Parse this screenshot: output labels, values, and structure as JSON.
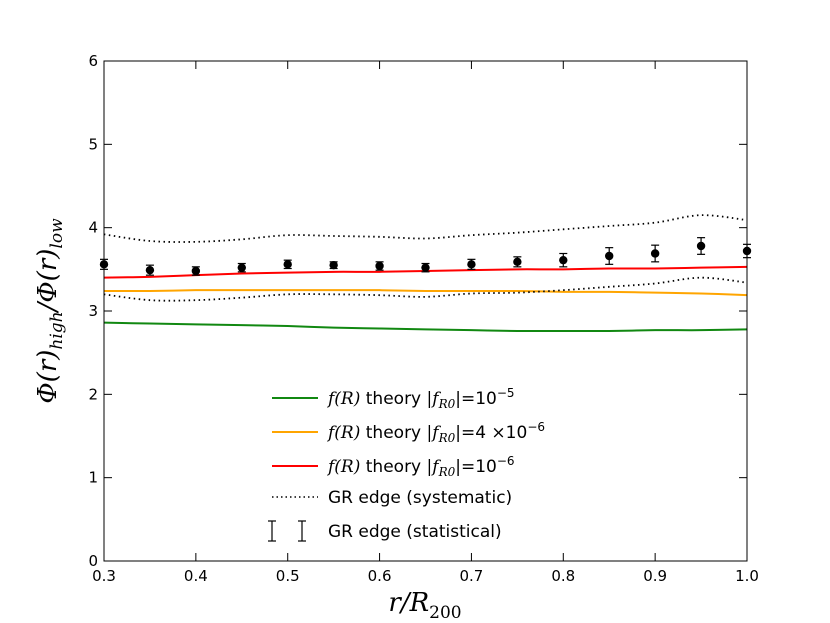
{
  "chart_data": {
    "type": "line",
    "title": "",
    "xlabel": "r/R",
    "xlabel_sub": "200",
    "ylabel_parts": {
      "phi1": "Φ(r)",
      "sub1": "high",
      "slash": "/Φ(r)",
      "sub2": "low"
    },
    "xlim": [
      0.3,
      1.0
    ],
    "ylim": [
      0,
      6
    ],
    "xticks": [
      "0.3",
      "0.4",
      "0.5",
      "0.6",
      "0.7",
      "0.8",
      "0.9",
      "1.0"
    ],
    "yticks": [
      "0",
      "1",
      "2",
      "3",
      "4",
      "5",
      "6"
    ],
    "series": [
      {
        "name": "f(R) theory |fR0|=10^-5",
        "color": "#118811",
        "style": "solid",
        "x": [
          0.3,
          0.35,
          0.4,
          0.45,
          0.5,
          0.55,
          0.6,
          0.65,
          0.7,
          0.75,
          0.8,
          0.85,
          0.9,
          0.95,
          1.0
        ],
        "y": [
          2.86,
          2.85,
          2.84,
          2.83,
          2.82,
          2.8,
          2.79,
          2.78,
          2.77,
          2.76,
          2.76,
          2.76,
          2.77,
          2.77,
          2.78
        ]
      },
      {
        "name": "f(R) theory |fR0|=4×10^-6",
        "color": "#ffa500",
        "style": "solid",
        "x": [
          0.3,
          0.35,
          0.4,
          0.45,
          0.5,
          0.55,
          0.6,
          0.65,
          0.7,
          0.75,
          0.8,
          0.85,
          0.9,
          0.95,
          1.0
        ],
        "y": [
          3.24,
          3.24,
          3.25,
          3.25,
          3.25,
          3.25,
          3.25,
          3.24,
          3.24,
          3.24,
          3.23,
          3.23,
          3.22,
          3.21,
          3.19
        ]
      },
      {
        "name": "f(R) theory |fR0|=10^-6",
        "color": "#ff0000",
        "style": "solid",
        "x": [
          0.3,
          0.35,
          0.4,
          0.45,
          0.5,
          0.55,
          0.6,
          0.65,
          0.7,
          0.75,
          0.8,
          0.85,
          0.9,
          0.95,
          1.0
        ],
        "y": [
          3.4,
          3.41,
          3.43,
          3.45,
          3.46,
          3.47,
          3.47,
          3.48,
          3.49,
          3.5,
          3.5,
          3.51,
          3.51,
          3.52,
          3.53
        ]
      },
      {
        "name": "GR edge (systematic) upper",
        "color": "#000000",
        "style": "dotted",
        "x": [
          0.3,
          0.35,
          0.4,
          0.45,
          0.5,
          0.55,
          0.6,
          0.65,
          0.7,
          0.75,
          0.8,
          0.85,
          0.9,
          0.95,
          1.0
        ],
        "y": [
          3.92,
          3.84,
          3.83,
          3.86,
          3.91,
          3.9,
          3.89,
          3.87,
          3.91,
          3.94,
          3.98,
          4.02,
          4.06,
          4.15,
          4.09
        ]
      },
      {
        "name": "GR edge (systematic) lower",
        "color": "#000000",
        "style": "dotted",
        "x": [
          0.3,
          0.35,
          0.4,
          0.45,
          0.5,
          0.55,
          0.6,
          0.65,
          0.7,
          0.75,
          0.8,
          0.85,
          0.9,
          0.95,
          1.0
        ],
        "y": [
          3.2,
          3.13,
          3.13,
          3.16,
          3.2,
          3.2,
          3.19,
          3.17,
          3.21,
          3.22,
          3.25,
          3.29,
          3.33,
          3.4,
          3.34
        ]
      }
    ],
    "points": {
      "name": "GR edge (statistical)",
      "color": "#000000",
      "x": [
        0.3,
        0.35,
        0.4,
        0.45,
        0.5,
        0.55,
        0.6,
        0.65,
        0.7,
        0.75,
        0.8,
        0.85,
        0.9,
        0.95,
        1.0
      ],
      "y": [
        3.56,
        3.49,
        3.48,
        3.52,
        3.56,
        3.55,
        3.54,
        3.52,
        3.56,
        3.59,
        3.61,
        3.66,
        3.69,
        3.78,
        3.72
      ],
      "err": [
        0.06,
        0.06,
        0.05,
        0.05,
        0.05,
        0.04,
        0.05,
        0.05,
        0.06,
        0.06,
        0.08,
        0.1,
        0.1,
        0.1,
        0.08
      ]
    },
    "legend": {
      "placement": "lower-center",
      "entries": [
        {
          "math": "f(R)",
          "text": " theory ",
          "math2": "|f",
          "sub": "R0",
          "tail": "|=10",
          "sup": "−5"
        },
        {
          "math": "f(R)",
          "text": " theory ",
          "math2": "|f",
          "sub": "R0",
          "tail": "|=4 ×10",
          "sup": "−6"
        },
        {
          "math": "f(R)",
          "text": " theory ",
          "math2": "|f",
          "sub": "R0",
          "tail": "|=10",
          "sup": "−6"
        },
        {
          "text": "GR edge (systematic)"
        },
        {
          "text": "GR edge (statistical)"
        }
      ]
    }
  }
}
